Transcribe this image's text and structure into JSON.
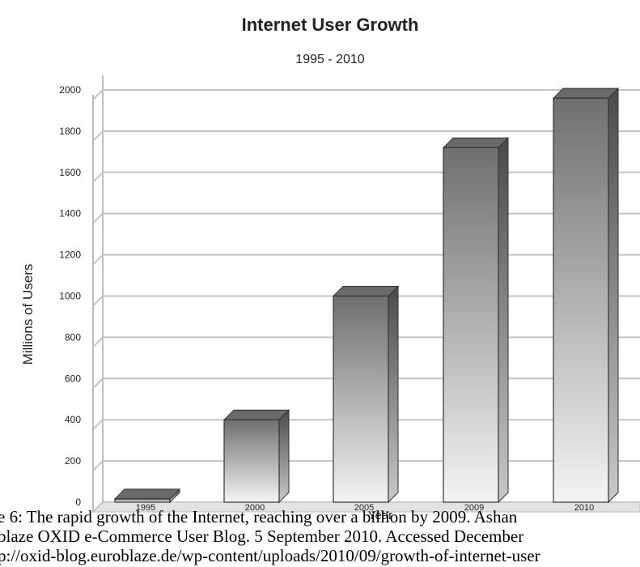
{
  "chart_data": {
    "type": "bar",
    "title": "Internet User Growth",
    "subtitle": "1995 - 2010",
    "xlabel": "Year",
    "ylabel": "Millions of Users",
    "categories": [
      "1995",
      "2000",
      "2005",
      "2009",
      "2010"
    ],
    "values": [
      16,
      400,
      1000,
      1720,
      1960
    ],
    "ylim": [
      0,
      2000
    ],
    "yticks": [
      "0",
      "200",
      "400",
      "600",
      "800",
      "1000",
      "1200",
      "1400",
      "1600",
      "1800",
      "2000"
    ],
    "grid": true,
    "legend": "none",
    "bar_color": "#6a6a6a"
  },
  "caption": {
    "line1": "e 6: The rapid growth of the Internet, reaching over a billion by 2009. Ashan",
    "line2": "blaze OXID e-Commerce User Blog. 5 September 2010. Accessed December",
    "line3": "p://oxid-blog.euroblaze.de/wp-content/uploads/2010/09/growth-of-internet-user"
  }
}
